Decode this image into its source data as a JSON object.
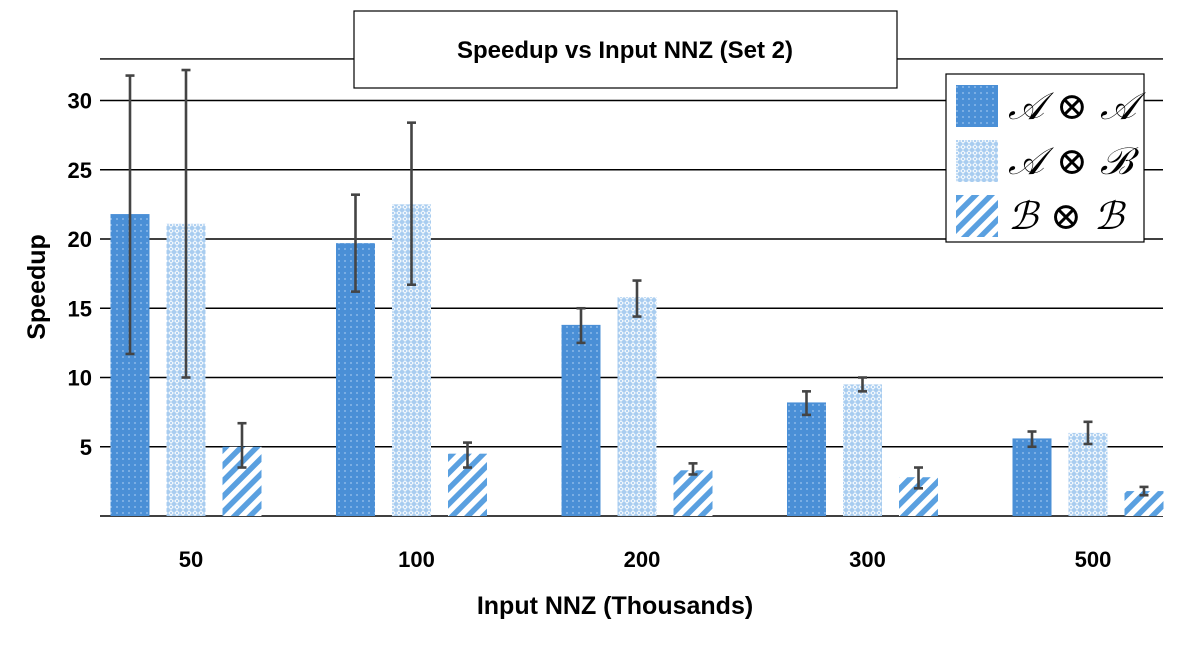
{
  "chart_data": {
    "type": "bar",
    "title": "Speedup vs Input NNZ (Set 2)",
    "xlabel": "Input NNZ (Thousands)",
    "ylabel": "Speedup",
    "categories": [
      "50",
      "100",
      "200",
      "300",
      "500"
    ],
    "ylim": [
      0,
      33
    ],
    "yticks": [
      5,
      10,
      15,
      20,
      25,
      30
    ],
    "grid": true,
    "legend_position": "top-right",
    "series": [
      {
        "name": "𝒜 ⊗ 𝒜",
        "values": [
          21.8,
          19.7,
          13.8,
          8.2,
          5.6
        ],
        "error_low": [
          11.7,
          16.2,
          12.5,
          7.3,
          5.0
        ],
        "error_high": [
          31.8,
          23.2,
          15.0,
          9.0,
          6.1
        ],
        "color": "#4a8fd6",
        "pattern": "dots"
      },
      {
        "name": "𝒜 ⊗ ℬ",
        "values": [
          21.1,
          22.5,
          15.8,
          9.5,
          6.0
        ],
        "error_low": [
          10.0,
          16.7,
          14.4,
          9.0,
          5.2
        ],
        "error_high": [
          32.2,
          28.4,
          17.0,
          10.0,
          6.8
        ],
        "color": "#a9cdf0",
        "pattern": "diamonds"
      },
      {
        "name": "ℬ ⊗ ℬ",
        "values": [
          5.0,
          4.5,
          3.3,
          2.8,
          1.8
        ],
        "error_low": [
          3.5,
          3.5,
          3.0,
          2.0,
          1.5
        ],
        "error_high": [
          6.7,
          5.3,
          3.8,
          3.5,
          2.1
        ],
        "color": "#5aa0e0",
        "pattern": "stripes"
      }
    ]
  }
}
